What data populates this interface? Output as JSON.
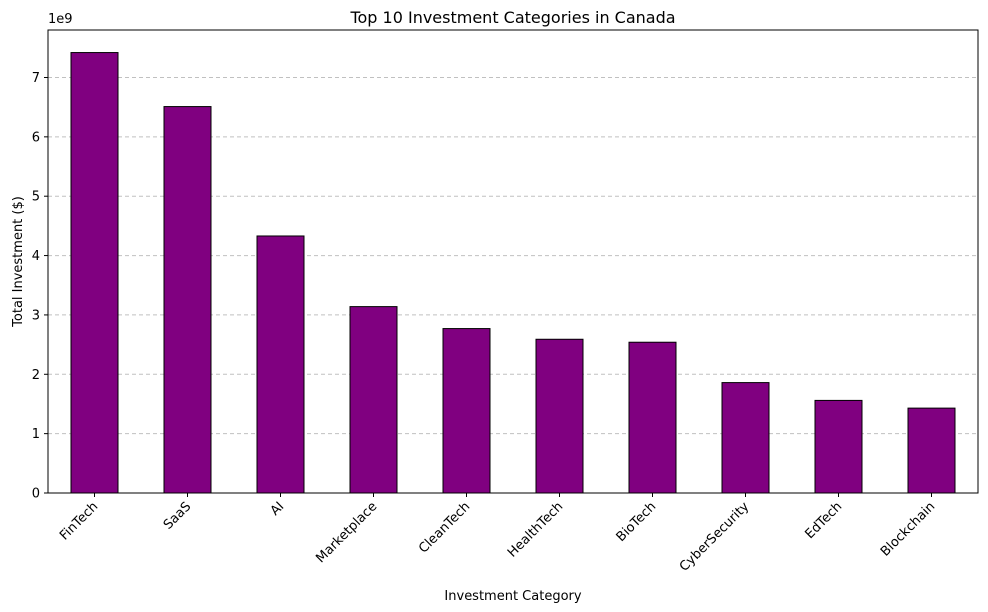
{
  "chart_data": {
    "type": "bar",
    "title": "Top 10 Investment Categories in Canada",
    "xlabel": "Investment Category",
    "ylabel": "Total Investment ($)",
    "y_offset_label": "1e9",
    "categories": [
      "FinTech",
      "SaaS",
      "AI",
      "Marketplace",
      "CleanTech",
      "HealthTech",
      "BioTech",
      "CyberSecurity",
      "EdTech",
      "Blockchain"
    ],
    "values": [
      7.42,
      6.51,
      4.33,
      3.14,
      2.77,
      2.59,
      2.54,
      1.86,
      1.56,
      1.43
    ],
    "value_multiplier": 1000000000,
    "ylim": [
      0,
      7.8
    ],
    "yticks": [
      "0",
      "1",
      "2",
      "3",
      "4",
      "5",
      "6",
      "7"
    ],
    "grid": "y, dashed",
    "bar_color": "#800080",
    "bar_edge_color": "#000000",
    "grid_color": "#c0c0c0"
  }
}
